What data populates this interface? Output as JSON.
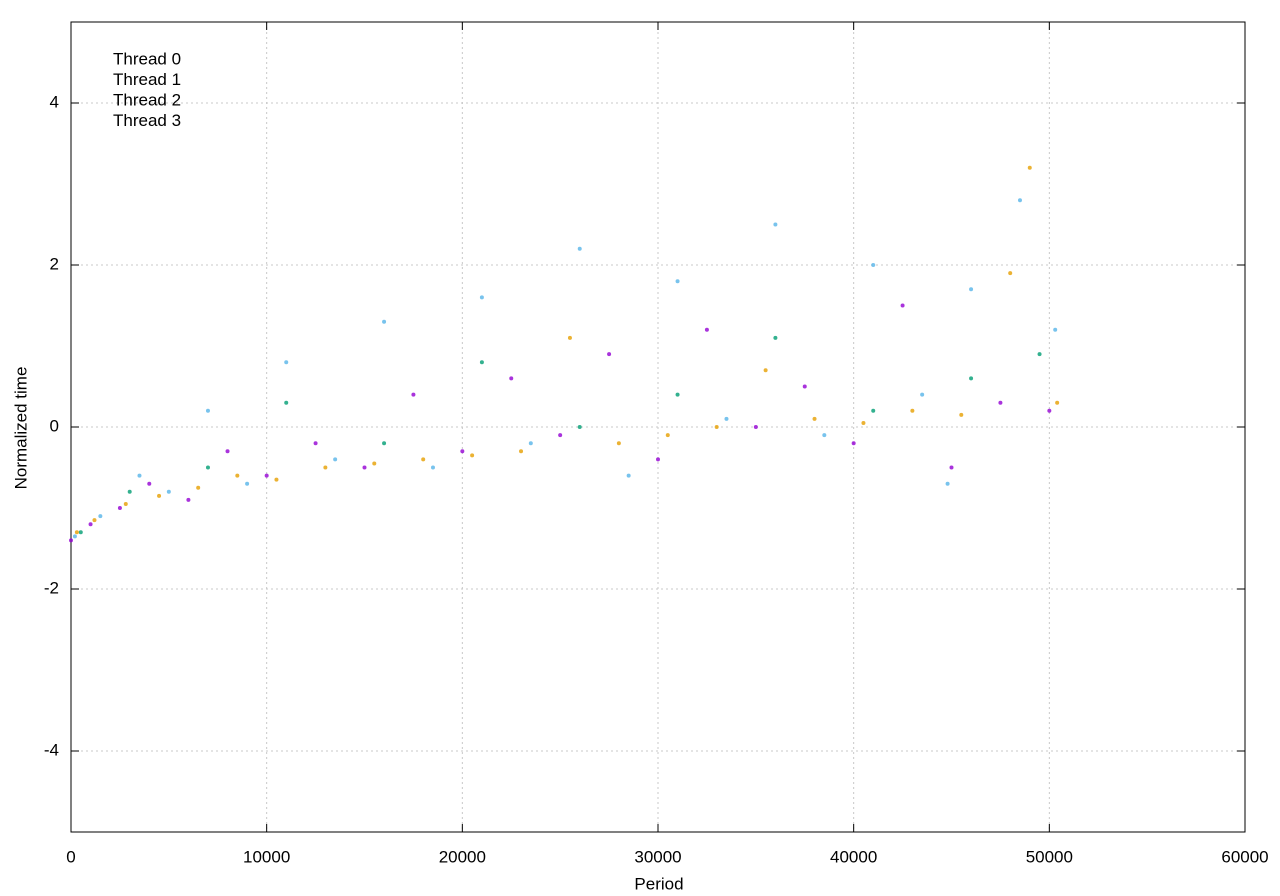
{
  "chart_data": {
    "type": "scatter",
    "x_label": "Period",
    "y_label": "Normalized time",
    "xlim": [
      0,
      60000
    ],
    "xticks": [
      0,
      10000,
      20000,
      30000,
      40000,
      50000,
      60000
    ],
    "ylim": [
      -5,
      5
    ],
    "yticks": [
      -4,
      -2,
      0,
      2,
      4
    ],
    "grid": true,
    "legend": "top-left",
    "series": [
      {
        "name": "Thread 0",
        "color": "#9400d3",
        "x": [
          0,
          1000,
          2500,
          4000,
          6000,
          8000,
          10000,
          12500,
          15000,
          17500,
          20000,
          22500,
          25000,
          27500,
          30000,
          32500,
          35000,
          37500,
          40000,
          42500,
          45000,
          47500,
          50000
        ],
        "values": [
          -1.4,
          -1.2,
          -1.0,
          -0.7,
          -0.9,
          -0.3,
          -0.6,
          -0.2,
          -0.5,
          0.4,
          -0.3,
          0.6,
          -0.1,
          0.9,
          -0.4,
          1.2,
          0.0,
          0.5,
          -0.2,
          1.5,
          -0.5,
          0.3,
          0.2
        ]
      },
      {
        "name": "Thread 1",
        "color": "#009e73",
        "x": [
          500,
          3000,
          7000,
          11000,
          16000,
          21000,
          26000,
          31000,
          36000,
          41000,
          46000,
          49500
        ],
        "values": [
          -1.3,
          -0.8,
          -0.5,
          0.3,
          -0.2,
          0.8,
          0.0,
          0.4,
          1.1,
          0.2,
          0.6,
          0.9
        ]
      },
      {
        "name": "Thread 2",
        "color": "#56b4e9",
        "x": [
          200,
          1500,
          3500,
          5000,
          7000,
          9000,
          11000,
          13500,
          16000,
          18500,
          21000,
          23500,
          26000,
          28500,
          31000,
          33500,
          36000,
          38500,
          41000,
          43500,
          44800,
          46000,
          48500,
          50300
        ],
        "values": [
          -1.35,
          -1.1,
          -0.6,
          -0.8,
          0.2,
          -0.7,
          0.8,
          -0.4,
          1.3,
          -0.5,
          1.6,
          -0.2,
          2.2,
          -0.6,
          1.8,
          0.1,
          2.5,
          -0.1,
          2.0,
          0.4,
          -0.7,
          1.7,
          2.8,
          1.2
        ]
      },
      {
        "name": "Thread 3",
        "color": "#e69f00",
        "x": [
          300,
          1200,
          2800,
          4500,
          6500,
          8500,
          10500,
          13000,
          15500,
          18000,
          20500,
          23000,
          25500,
          28000,
          30500,
          33000,
          35500,
          38000,
          40500,
          43000,
          45500,
          48000,
          49000,
          50400
        ],
        "values": [
          -1.3,
          -1.15,
          -0.95,
          -0.85,
          -0.75,
          -0.6,
          -0.65,
          -0.5,
          -0.45,
          -0.4,
          -0.35,
          -0.3,
          1.1,
          -0.2,
          -0.1,
          0.0,
          0.7,
          0.1,
          0.05,
          0.2,
          0.15,
          1.9,
          3.2,
          0.3
        ]
      }
    ]
  }
}
